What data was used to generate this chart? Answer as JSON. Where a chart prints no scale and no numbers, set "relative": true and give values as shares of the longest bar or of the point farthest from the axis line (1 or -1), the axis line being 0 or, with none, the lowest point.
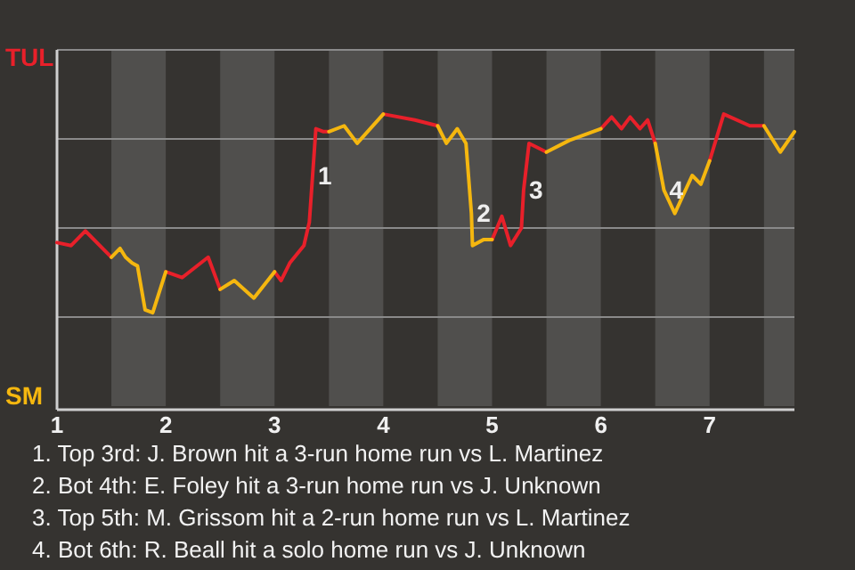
{
  "chart_data": {
    "type": "line",
    "relative": true,
    "xlim": [
      1,
      7.78
    ],
    "xticks": [
      1,
      2,
      3,
      4,
      5,
      6,
      7
    ],
    "grid": "y",
    "marker": "none",
    "line_style": "solid",
    "x": [
      1,
      1.13,
      1.26,
      1.5,
      1.58,
      1.63,
      1.69,
      1.74,
      1.81,
      1.88,
      2,
      2.15,
      2.39,
      2.5,
      2.63,
      2.81,
      3,
      3.06,
      3.14,
      3.27,
      3.32,
      3.38,
      3.45,
      3.5,
      3.64,
      3.76,
      4,
      4.29,
      4.5,
      4.58,
      4.68,
      4.76,
      4.81,
      4.82,
      4.92,
      5,
      5.09,
      5.17,
      5.27,
      5.29,
      5.34,
      5.5,
      5.71,
      6,
      6.1,
      6.19,
      6.27,
      6.36,
      6.43,
      6.5,
      6.58,
      6.68,
      6.84,
      6.92,
      7,
      7.13,
      7.37,
      7.5,
      7.65,
      7.78
    ],
    "series": [
      {
        "name": "TUL",
        "color": "#e8202a",
        "values": [
          0.56,
          0.55,
          0.6,
          0.51,
          null,
          null,
          null,
          null,
          null,
          null,
          0.46,
          0.44,
          0.51,
          0.4,
          null,
          null,
          0.46,
          0.43,
          0.49,
          0.55,
          0.63,
          0.95,
          0.94,
          0.94,
          null,
          null,
          1,
          0.98,
          0.96,
          null,
          null,
          null,
          null,
          null,
          null,
          0.57,
          0.65,
          0.55,
          0.61,
          0.74,
          0.9,
          0.87,
          null,
          0.95,
          0.99,
          0.95,
          0.99,
          0.95,
          0.98,
          0.9,
          null,
          null,
          null,
          null,
          0.84,
          1,
          0.96,
          0.96,
          null,
          null
        ]
      },
      {
        "name": "SM",
        "color": "#f5b70f",
        "values": [
          null,
          null,
          null,
          0.51,
          0.54,
          0.51,
          0.49,
          0.48,
          0.33,
          0.32,
          0.46,
          null,
          null,
          0.4,
          0.43,
          0.37,
          0.46,
          null,
          null,
          null,
          null,
          null,
          null,
          0.94,
          0.96,
          0.9,
          1,
          null,
          0.96,
          0.9,
          0.95,
          0.9,
          0.66,
          0.55,
          0.57,
          0.57,
          null,
          null,
          null,
          null,
          null,
          0.87,
          0.91,
          0.95,
          null,
          null,
          null,
          null,
          null,
          0.9,
          0.74,
          0.66,
          0.79,
          0.76,
          0.84,
          null,
          null,
          0.96,
          0.87,
          0.94
        ]
      }
    ],
    "bands": [
      {
        "axis": "x",
        "from": 1.5,
        "to": 2,
        "color": "#504f4d"
      },
      {
        "axis": "x",
        "from": 2.5,
        "to": 3,
        "color": "#504f4d"
      },
      {
        "axis": "x",
        "from": 3.5,
        "to": 4,
        "color": "#504f4d"
      },
      {
        "axis": "x",
        "from": 4.5,
        "to": 5,
        "color": "#504f4d"
      },
      {
        "axis": "x",
        "from": 5.5,
        "to": 6,
        "color": "#504f4d"
      },
      {
        "axis": "x",
        "from": 6.5,
        "to": 7,
        "color": "#504f4d"
      },
      {
        "axis": "x",
        "from": 7.5,
        "to": 7.78,
        "color": "#504f4d"
      }
    ],
    "annotations": [
      {
        "text": "1",
        "x": 3.35,
        "y": 0.79
      },
      {
        "text": "2",
        "x": 4.81,
        "y": 0.66
      },
      {
        "text": "3",
        "x": 5.29,
        "y": 0.74
      },
      {
        "text": "4",
        "x": 6.58,
        "y": 0.74
      },
      "1. Top 3rd: J. Brown hit a 3-run home run vs L. Martinez",
      "2. Bot 4th: E. Foley hit a 3-run home run vs J. Unknown",
      "3. Top 5th: M. Grissom hit a 2-run home run vs L. Martinez",
      "4. Bot 6th: R. Beall hit a solo home run vs J. Unknown"
    ]
  }
}
